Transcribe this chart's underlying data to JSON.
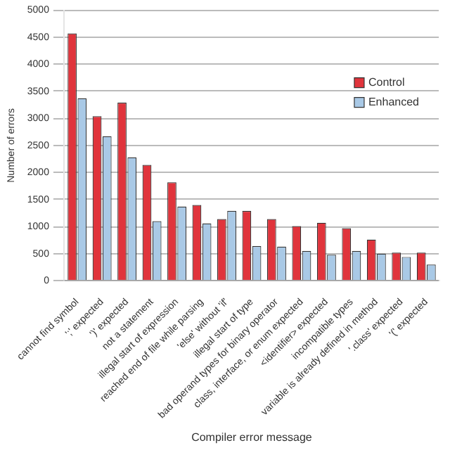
{
  "chart_data": {
    "type": "bar",
    "xlabel": "Compiler error message",
    "ylabel": "Number of errors",
    "categories": [
      "cannot find symbol",
      "';' expected",
      "')' expected",
      "not a statement",
      "illegal start of expression",
      "reached end of file while parsing",
      "'else' without 'if'",
      "illegal start of type",
      "bad operand types for binary operator",
      "class, interface, or enum expected",
      "<identifier> expected",
      "incompatible types",
      "variable is already defined in method",
      "'.class' expected",
      "'(' expected"
    ],
    "series": [
      {
        "name": "Control",
        "color": "#e0343c",
        "values": [
          4570,
          3040,
          3290,
          2140,
          1820,
          1400,
          1140,
          1290,
          1140,
          1010,
          1070,
          970,
          760,
          520,
          520
        ]
      },
      {
        "name": "Enhanced",
        "color": "#a9c9e6",
        "values": [
          3370,
          2670,
          2280,
          1100,
          1370,
          1060,
          1290,
          640,
          630,
          550,
          480,
          550,
          500,
          440,
          300
        ]
      }
    ],
    "ylim": [
      0,
      5000
    ],
    "yticks": [
      0,
      500,
      1000,
      1500,
      2000,
      2500,
      3000,
      3500,
      4000,
      4500,
      5000
    ],
    "grid": "y",
    "legend": "top right"
  }
}
